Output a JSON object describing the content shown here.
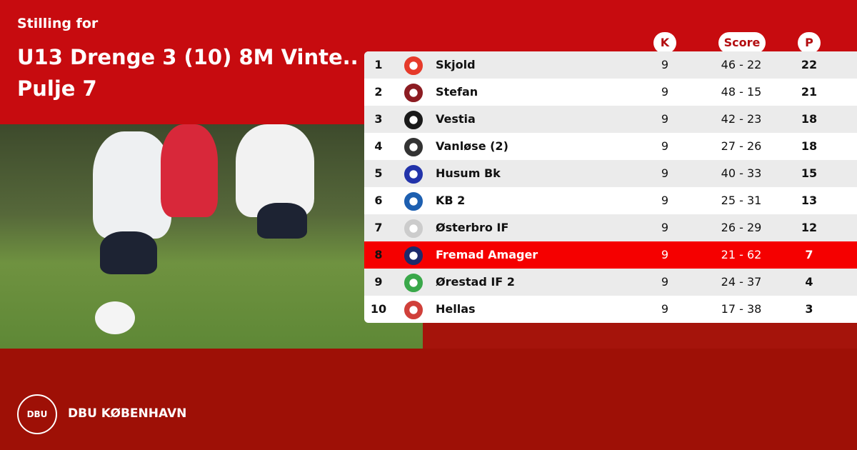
{
  "header": {
    "subtitle": "Stilling for",
    "title_line1": "U13 Drenge 3 (10) 8M Vinte..",
    "title_line2": "Pulje 7"
  },
  "table": {
    "columns": {
      "k": "K",
      "score": "Score",
      "p": "P"
    },
    "highlight_color": "#f50000",
    "rows": [
      {
        "rank": "1",
        "team": "Skjold",
        "k": "9",
        "score": "46 - 22",
        "p": "22",
        "logo_color": "#e63a2a"
      },
      {
        "rank": "2",
        "team": "Stefan",
        "k": "9",
        "score": "48 - 15",
        "p": "21",
        "logo_color": "#8c1c22"
      },
      {
        "rank": "3",
        "team": "Vestia",
        "k": "9",
        "score": "42 - 23",
        "p": "18",
        "logo_color": "#1a1a1a"
      },
      {
        "rank": "4",
        "team": "Vanløse (2)",
        "k": "9",
        "score": "27 - 26",
        "p": "18",
        "logo_color": "#333333"
      },
      {
        "rank": "5",
        "team": "Husum Bk",
        "k": "9",
        "score": "40 - 33",
        "p": "15",
        "logo_color": "#2233aa"
      },
      {
        "rank": "6",
        "team": "KB 2",
        "k": "9",
        "score": "25 - 31",
        "p": "13",
        "logo_color": "#1d5fb0"
      },
      {
        "rank": "7",
        "team": "Østerbro IF",
        "k": "9",
        "score": "26 - 29",
        "p": "12",
        "logo_color": "#cccccc"
      },
      {
        "rank": "8",
        "team": "Fremad Amager",
        "k": "9",
        "score": "21 - 62",
        "p": "7",
        "logo_color": "#1c2a6b",
        "highlight": true
      },
      {
        "rank": "9",
        "team": "Ørestad IF 2",
        "k": "9",
        "score": "24 - 37",
        "p": "4",
        "logo_color": "#3aa84a"
      },
      {
        "rank": "10",
        "team": "Hellas",
        "k": "9",
        "score": "17 - 38",
        "p": "3",
        "logo_color": "#d0403a"
      }
    ]
  },
  "footer": {
    "brand": "DBU KØBENHAVN",
    "logo_text": "DBU"
  }
}
